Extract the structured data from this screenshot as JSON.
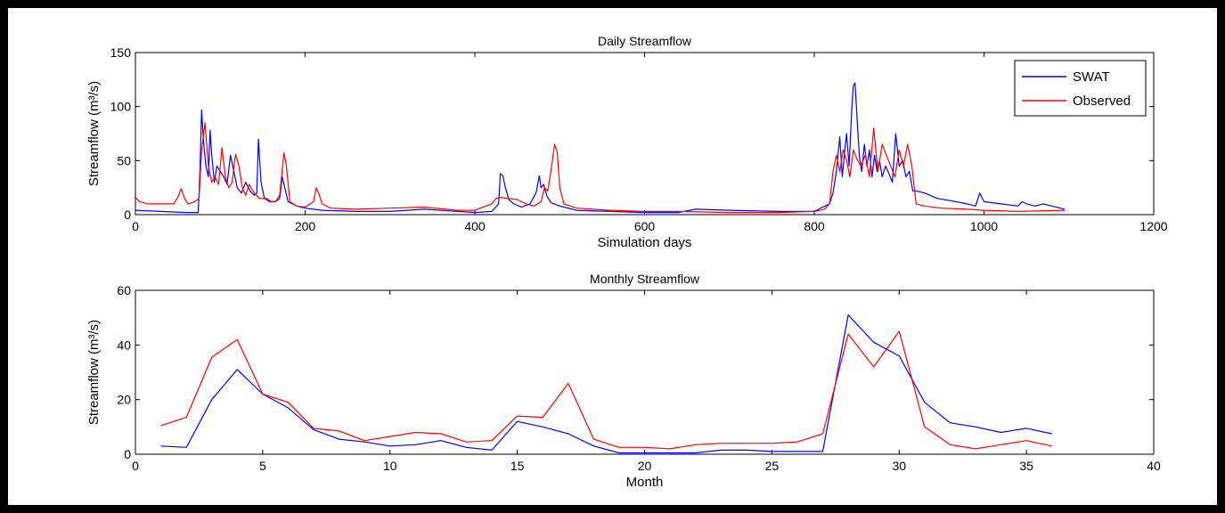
{
  "chart_data": [
    {
      "type": "line",
      "title": "Daily Streamflow",
      "xlabel": "Simulation days",
      "ylabel": "Streamflow (m³/s)",
      "xlim": [
        0,
        1200
      ],
      "ylim": [
        0,
        150
      ],
      "xticks": [
        0,
        200,
        400,
        600,
        800,
        1000,
        1200
      ],
      "yticks": [
        0,
        50,
        100,
        150
      ],
      "legend": "top-right",
      "series": [
        {
          "name": "SWAT",
          "color": "#0000ff",
          "x": [
            0,
            30,
            60,
            74,
            76,
            78,
            80,
            83,
            86,
            88,
            90,
            93,
            96,
            100,
            104,
            108,
            112,
            116,
            120,
            125,
            130,
            135,
            140,
            143,
            145,
            148,
            152,
            158,
            165,
            170,
            173,
            176,
            180,
            190,
            200,
            220,
            260,
            300,
            340,
            380,
            400,
            420,
            428,
            430,
            433,
            436,
            440,
            446,
            455,
            465,
            472,
            476,
            478,
            481,
            485,
            490,
            500,
            520,
            560,
            600,
            640,
            660,
            700,
            760,
            800,
            810,
            818,
            822,
            826,
            830,
            833,
            836,
            838,
            841,
            844,
            846,
            848,
            850,
            853,
            856,
            859,
            862,
            865,
            868,
            871,
            874,
            877,
            880,
            884,
            888,
            892,
            896,
            900,
            904,
            908,
            912,
            916,
            920,
            930,
            945,
            960,
            980,
            990,
            995,
            1000,
            1020,
            1040,
            1045,
            1050,
            1060,
            1070,
            1080,
            1095
          ],
          "y": [
            4,
            3,
            2,
            2,
            40,
            97,
            70,
            45,
            35,
            78,
            55,
            30,
            45,
            40,
            35,
            28,
            55,
            40,
            25,
            20,
            30,
            22,
            18,
            20,
            70,
            30,
            15,
            12,
            12,
            15,
            35,
            25,
            12,
            8,
            6,
            4,
            3,
            3,
            5,
            3,
            2,
            3,
            10,
            38,
            36,
            25,
            14,
            10,
            7,
            10,
            20,
            36,
            25,
            28,
            17,
            11,
            8,
            4,
            3,
            2,
            2,
            5,
            4,
            3,
            3,
            7,
            10,
            20,
            40,
            72,
            35,
            60,
            75,
            45,
            95,
            119,
            122,
            95,
            55,
            40,
            65,
            45,
            60,
            35,
            55,
            40,
            50,
            35,
            45,
            38,
            30,
            75,
            45,
            50,
            35,
            40,
            22,
            22,
            20,
            15,
            13,
            10,
            8,
            20,
            12,
            10,
            8,
            12,
            10,
            8,
            10,
            8,
            5
          ]
        },
        {
          "name": "Observed",
          "color": "#ff0000",
          "x": [
            0,
            5,
            15,
            30,
            45,
            50,
            54,
            58,
            62,
            70,
            75,
            78,
            82,
            86,
            90,
            94,
            98,
            102,
            106,
            110,
            114,
            118,
            122,
            126,
            130,
            134,
            140,
            146,
            150,
            155,
            160,
            165,
            170,
            175,
            178,
            182,
            186,
            190,
            200,
            210,
            213,
            216,
            220,
            230,
            260,
            300,
            340,
            380,
            400,
            420,
            425,
            430,
            440,
            450,
            460,
            470,
            478,
            482,
            486,
            490,
            494,
            497,
            500,
            505,
            520,
            560,
            600,
            640,
            700,
            760,
            800,
            812,
            818,
            822,
            826,
            830,
            834,
            838,
            842,
            846,
            850,
            855,
            860,
            865,
            870,
            875,
            880,
            885,
            890,
            895,
            900,
            905,
            910,
            915,
            920,
            930,
            950,
            980,
            1000,
            1040,
            1095
          ],
          "y": [
            16,
            12,
            10,
            10,
            10,
            16,
            24,
            15,
            10,
            12,
            15,
            60,
            85,
            45,
            30,
            35,
            28,
            62,
            35,
            25,
            30,
            56,
            45,
            25,
            18,
            28,
            20,
            15,
            15,
            15,
            12,
            12,
            18,
            57,
            45,
            12,
            10,
            8,
            7,
            12,
            25,
            20,
            10,
            6,
            5,
            6,
            7,
            4,
            4,
            10,
            15,
            16,
            15,
            14,
            10,
            8,
            12,
            25,
            22,
            42,
            65,
            58,
            25,
            10,
            6,
            4,
            3,
            3,
            2,
            2,
            3,
            5,
            10,
            40,
            55,
            40,
            60,
            50,
            35,
            60,
            52,
            45,
            55,
            35,
            80,
            40,
            65,
            55,
            45,
            35,
            60,
            45,
            65,
            45,
            10,
            8,
            6,
            5,
            4,
            3,
            4
          ]
        }
      ]
    },
    {
      "type": "line",
      "title": "Monthly Streamflow",
      "xlabel": "Month",
      "ylabel": "Streamflow (m³/s)",
      "xlim": [
        0,
        40
      ],
      "ylim": [
        0,
        60
      ],
      "xticks": [
        0,
        5,
        10,
        15,
        20,
        25,
        30,
        35,
        40
      ],
      "yticks": [
        0,
        20,
        40,
        60
      ],
      "series": [
        {
          "name": "SWAT",
          "color": "#0000ff",
          "x": [
            1,
            2,
            3,
            4,
            5,
            6,
            7,
            8,
            9,
            10,
            11,
            12,
            13,
            14,
            15,
            16,
            17,
            18,
            19,
            20,
            21,
            22,
            23,
            24,
            25,
            26,
            27,
            28,
            29,
            30,
            31,
            32,
            33,
            34,
            35,
            36
          ],
          "y": [
            3,
            2.5,
            20,
            31,
            22,
            17,
            9,
            5.5,
            4.5,
            3,
            3.5,
            5,
            2.5,
            1.5,
            12,
            10,
            7.5,
            3,
            0.5,
            0.5,
            0.5,
            0.5,
            1.5,
            1.5,
            1,
            1,
            1,
            51,
            41,
            36,
            19,
            11.5,
            10,
            8,
            9.5,
            7.5
          ]
        },
        {
          "name": "Observed",
          "color": "#ff0000",
          "x": [
            1,
            2,
            3,
            4,
            5,
            6,
            7,
            8,
            9,
            10,
            11,
            12,
            13,
            14,
            15,
            16,
            17,
            18,
            19,
            20,
            21,
            22,
            23,
            24,
            25,
            26,
            27,
            28,
            29,
            30,
            31,
            32,
            33,
            34,
            35,
            36
          ],
          "y": [
            10.5,
            13.5,
            35.5,
            42,
            22,
            19,
            9.5,
            8.5,
            5,
            6.5,
            8,
            7.5,
            4.5,
            5,
            14,
            13.5,
            26,
            5.5,
            2.5,
            2.5,
            2,
            3.5,
            4,
            4,
            4,
            4.5,
            7.5,
            44,
            32,
            45,
            10,
            3.5,
            2,
            3.5,
            5,
            3
          ]
        }
      ]
    }
  ]
}
